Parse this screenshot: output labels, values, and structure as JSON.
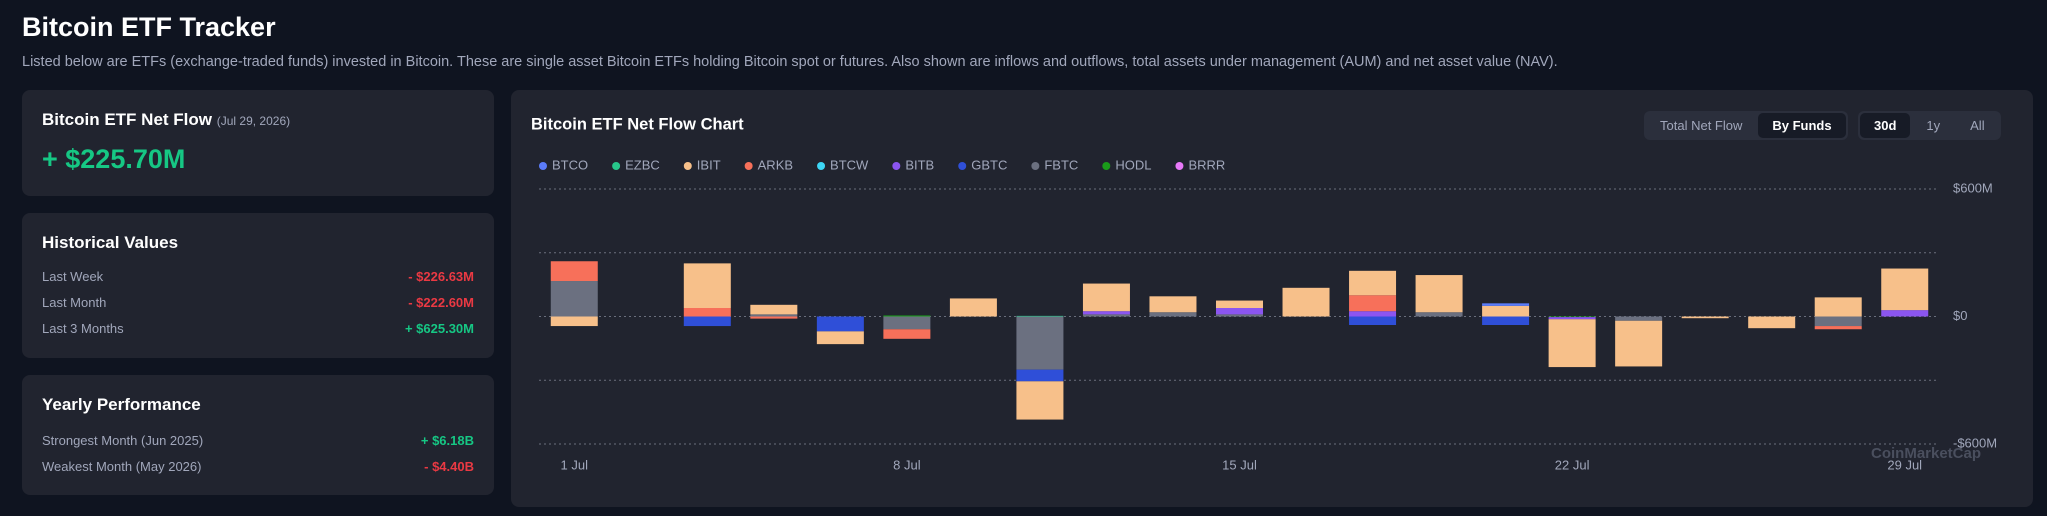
{
  "header": {
    "title": "Bitcoin ETF Tracker",
    "description": "Listed below are ETFs (exchange-traded funds) invested in Bitcoin. These are single asset Bitcoin ETFs holding Bitcoin spot or futures. Also shown are inflows and outflows, total assets under management (AUM) and net asset value (NAV)."
  },
  "net_flow": {
    "title": "Bitcoin ETF Net Flow",
    "date": "(Jul 29, 2026)",
    "value": "+ $225.70M"
  },
  "historical": {
    "title": "Historical Values",
    "rows": [
      [
        "Last Week",
        "- $226.63M"
      ],
      [
        "Last Month",
        "- $222.60M"
      ],
      [
        "Last 3 Months",
        "+ $625.30M"
      ]
    ]
  },
  "yearly": {
    "title": "Yearly Performance",
    "rows": [
      [
        "Strongest Month",
        "(Jun 2025)",
        "+ $6.18B"
      ],
      [
        "Weakest Month",
        "(May 2026)",
        "- $4.40B"
      ]
    ]
  },
  "controls": {
    "view": [
      "Total Net Flow",
      "By Funds"
    ],
    "active_view": 1,
    "range": [
      "30d",
      "1y",
      "All"
    ],
    "active_range": 0
  },
  "watermark": "CoinMarketCap",
  "chart_data": {
    "type": "bar",
    "stacked": true,
    "title": "Bitcoin ETF Net Flow Chart",
    "categories": [
      "1 Jul",
      null,
      null,
      null,
      null,
      "8 Jul",
      null,
      null,
      null,
      null,
      "15 Jul",
      null,
      null,
      null,
      null,
      "22 Jul",
      null,
      null,
      null,
      null,
      "29 Jul"
    ],
    "series": [
      {
        "name": "BTCO",
        "color": "#5b7cfa",
        "values": [
          0,
          0,
          0,
          0,
          0,
          0,
          0,
          0,
          0,
          0,
          0,
          0,
          0,
          0,
          12,
          0,
          0,
          0,
          0,
          0,
          0
        ]
      },
      {
        "name": "EZBC",
        "color": "#27c68a",
        "values": [
          0,
          0,
          0,
          0,
          0,
          0,
          0,
          3,
          0,
          0,
          0,
          0,
          0,
          0,
          0,
          0,
          0,
          0,
          0,
          0,
          0
        ]
      },
      {
        "name": "IBIT",
        "color": "#f7c08a",
        "values": [
          -45,
          0,
          210,
          45,
          -60,
          0,
          85,
          -180,
          130,
          75,
          35,
          135,
          115,
          175,
          50,
          -225,
          -215,
          -8,
          -55,
          90,
          195.7
        ]
      },
      {
        "name": "ARKB",
        "color": "#f7705a",
        "values": [
          93,
          0,
          40,
          -10,
          0,
          -45,
          0,
          0,
          0,
          0,
          0,
          0,
          75,
          0,
          0,
          0,
          0,
          0,
          0,
          -15,
          0
        ]
      },
      {
        "name": "BTCW",
        "color": "#3dd6f5",
        "values": [
          0,
          0,
          0,
          0,
          0,
          0,
          0,
          0,
          0,
          0,
          0,
          0,
          0,
          0,
          0,
          0,
          0,
          0,
          0,
          0,
          0
        ]
      },
      {
        "name": "BITB",
        "color": "#8b55f0",
        "values": [
          0,
          0,
          0,
          0,
          0,
          0,
          0,
          0,
          15,
          0,
          30,
          0,
          25,
          0,
          0,
          -10,
          0,
          0,
          0,
          0,
          30
        ]
      },
      {
        "name": "GBTC",
        "color": "#2f4fd8",
        "values": [
          0,
          0,
          -45,
          0,
          -70,
          0,
          0,
          -55,
          0,
          0,
          0,
          0,
          -40,
          0,
          -40,
          0,
          0,
          0,
          0,
          0,
          0
        ]
      },
      {
        "name": "FBTC",
        "color": "#6b7080",
        "values": [
          167,
          0,
          0,
          10,
          0,
          -60,
          0,
          -250,
          10,
          20,
          10,
          0,
          0,
          20,
          0,
          0,
          -20,
          0,
          0,
          -45,
          0
        ]
      },
      {
        "name": "HODL",
        "color": "#1a9b1a",
        "values": [
          0,
          0,
          0,
          0,
          0,
          5,
          0,
          0,
          0,
          0,
          0,
          0,
          0,
          0,
          0,
          -3,
          0,
          0,
          0,
          0,
          0
        ]
      },
      {
        "name": "BRRR",
        "color": "#e879f9",
        "values": [
          0,
          0,
          0,
          0,
          0,
          0,
          0,
          0,
          0,
          0,
          0,
          0,
          0,
          0,
          0,
          0,
          0,
          0,
          0,
          0,
          0
        ]
      }
    ],
    "ylim": [
      -600,
      600
    ],
    "yticks": [
      {
        "value": 600,
        "label": "$600M"
      },
      {
        "value": 300,
        "label": null
      },
      {
        "value": 0,
        "label": "$0"
      },
      {
        "value": -300,
        "label": null
      },
      {
        "value": -600,
        "label": "-$600M"
      }
    ],
    "grid": true
  }
}
